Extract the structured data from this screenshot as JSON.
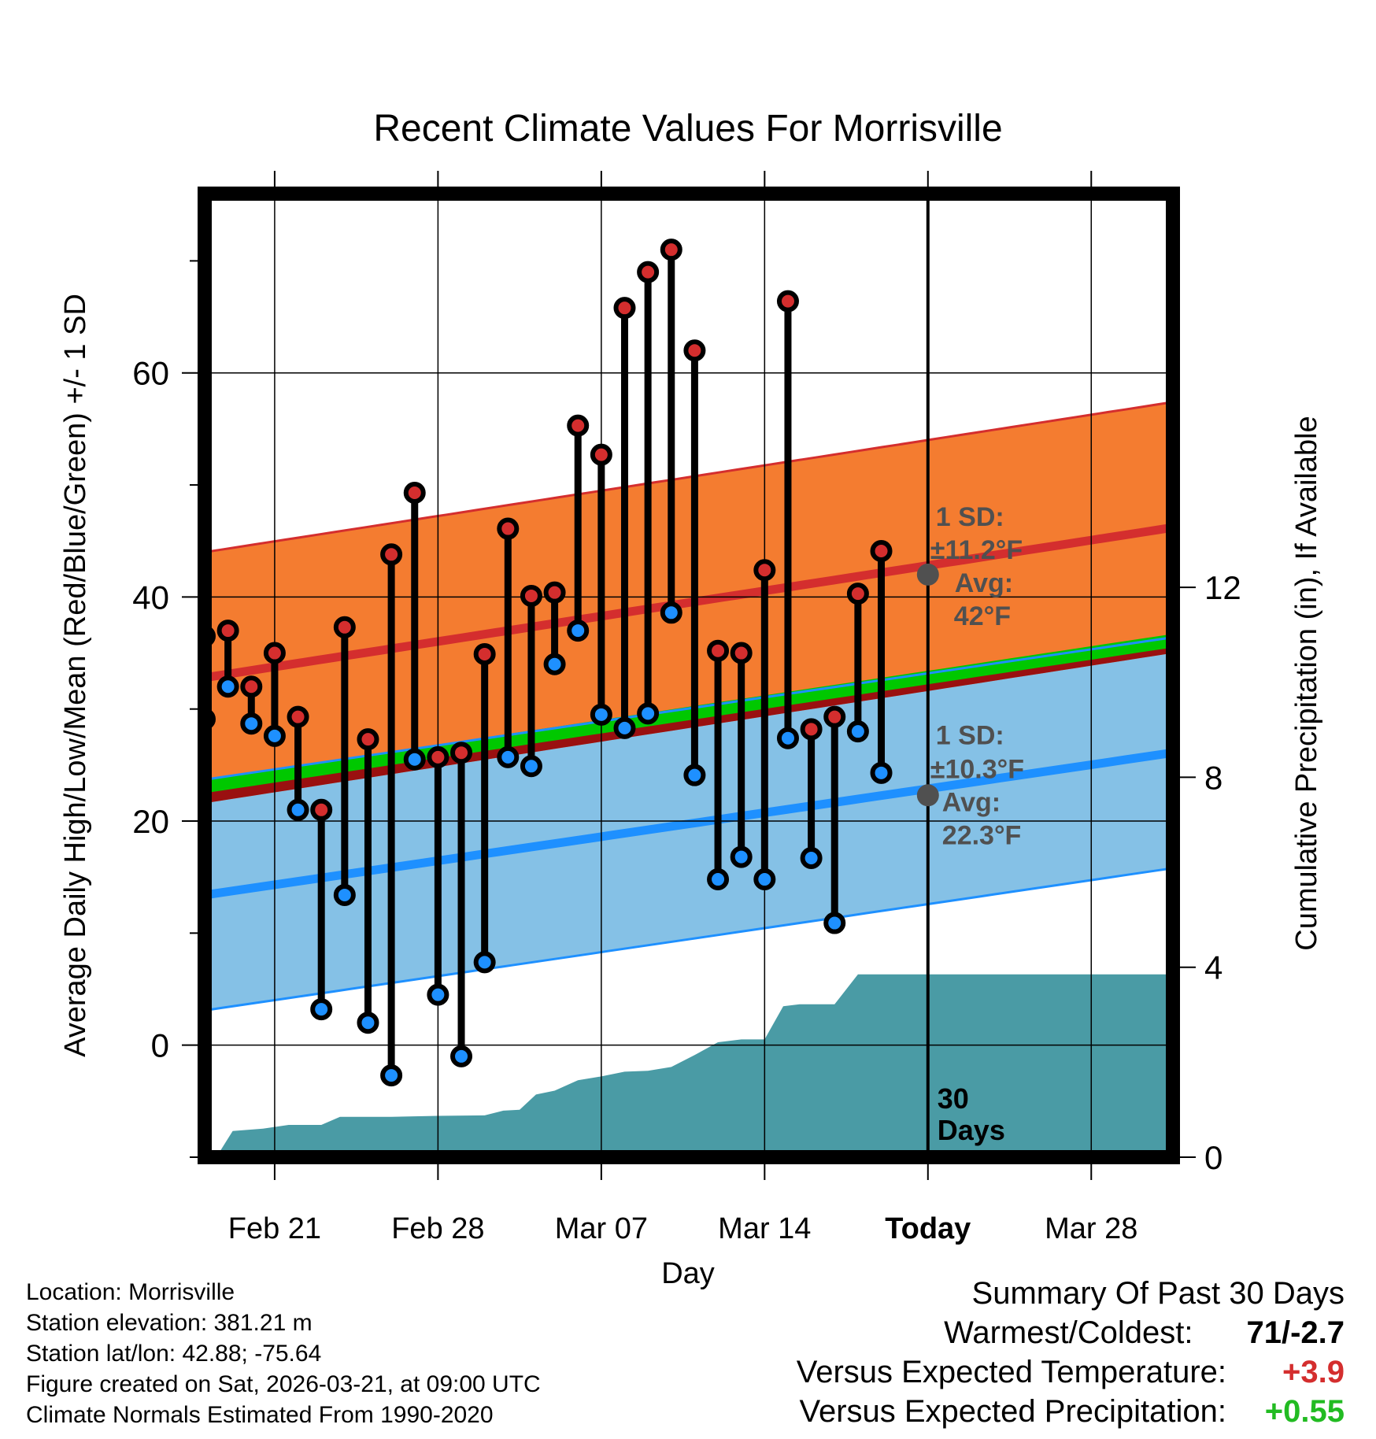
{
  "title": "Recent Climate Values For Morrisville",
  "colors": {
    "high_band": "#F47C30",
    "high_line": "#D42E2E",
    "low_band": "#85C1E6",
    "low_line": "#1E90FF",
    "overlap_red": "#9A1010",
    "overlap_green": "#00C800",
    "precip_fill": "#4A9BA5",
    "high_dot": "#D42E2E",
    "low_dot": "#1E90FF",
    "annot_gray": "#505050",
    "warm_red": "#D42E2E",
    "precip_green": "#22BB22"
  },
  "chart_data": {
    "type": "line",
    "xlabel": "Day",
    "ylabel": "Average Daily High/Low/Mean (Red/Blue/Green) +/- 1 SD",
    "ylabel_right": "Cumulative Precipitation (in), If Available",
    "x_ticks": [
      {
        "day": 3,
        "label": "Feb 21"
      },
      {
        "day": 10,
        "label": "Feb 28"
      },
      {
        "day": 17,
        "label": "Mar 07"
      },
      {
        "day": 24,
        "label": "Mar 14"
      },
      {
        "day": 31,
        "label": "Today"
      },
      {
        "day": 38,
        "label": "Mar 28"
      }
    ],
    "y_ticks": [
      0,
      20,
      40,
      60
    ],
    "y_right_ticks": [
      0,
      4,
      8,
      12
    ],
    "xlim": [
      0,
      41.5
    ],
    "ylim": [
      -10,
      76
    ],
    "y_right_lim": [
      0,
      20.29
    ],
    "today_day": 31,
    "today_label": [
      "30",
      "Days"
    ],
    "normals": {
      "high_mean": [
        32.8,
        46.2
      ],
      "high_sd": 11.2,
      "low_mean": [
        13.4,
        26.1
      ],
      "low_sd": 10.3,
      "mean_avg": [
        23.1,
        36.1
      ]
    },
    "today_annotations": {
      "high": {
        "sd_label": "1 SD:",
        "sd_value": "±11.2°F",
        "avg_label": "Avg:",
        "avg_value": "42°F",
        "value": 42.0
      },
      "low": {
        "sd_label": "1 SD:",
        "sd_value": "±10.3°F",
        "avg_label": "Avg:",
        "avg_value": "22.3°F",
        "value": 22.3
      }
    },
    "daily": [
      {
        "day": 0,
        "high": 36.5,
        "low": 29.1
      },
      {
        "day": 1,
        "high": 37.0,
        "low": 32.0
      },
      {
        "day": 2,
        "high": 32.0,
        "low": 28.7
      },
      {
        "day": 3,
        "high": 35.0,
        "low": 27.6
      },
      {
        "day": 4,
        "high": 29.3,
        "low": 21.0
      },
      {
        "day": 5,
        "high": 21.0,
        "low": 3.2
      },
      {
        "day": 6,
        "high": 37.3,
        "low": 13.4
      },
      {
        "day": 7,
        "high": 27.3,
        "low": 2.0
      },
      {
        "day": 8,
        "high": 43.8,
        "low": -2.7
      },
      {
        "day": 9,
        "high": 49.3,
        "low": 25.5
      },
      {
        "day": 10,
        "high": 25.7,
        "low": 4.5
      },
      {
        "day": 11,
        "high": 26.1,
        "low": -1.0
      },
      {
        "day": 12,
        "high": 34.9,
        "low": 7.4
      },
      {
        "day": 13,
        "high": 46.1,
        "low": 25.7
      },
      {
        "day": 14,
        "high": 40.1,
        "low": 24.9
      },
      {
        "day": 15,
        "high": 40.4,
        "low": 34.0
      },
      {
        "day": 16,
        "high": 55.3,
        "low": 37.0
      },
      {
        "day": 17,
        "high": 52.7,
        "low": 29.5
      },
      {
        "day": 18,
        "high": 65.8,
        "low": 28.3
      },
      {
        "day": 19,
        "high": 69.0,
        "low": 29.6
      },
      {
        "day": 20,
        "high": 71.0,
        "low": 38.6
      },
      {
        "day": 21,
        "high": 62.0,
        "low": 24.1
      },
      {
        "day": 22,
        "high": 35.2,
        "low": 14.8
      },
      {
        "day": 23,
        "high": 35.0,
        "low": 16.8
      },
      {
        "day": 24,
        "high": 42.4,
        "low": 14.8
      },
      {
        "day": 25,
        "high": 66.4,
        "low": 27.4
      },
      {
        "day": 26,
        "high": 28.2,
        "low": 16.7
      },
      {
        "day": 27,
        "high": 29.3,
        "low": 10.9
      },
      {
        "day": 28,
        "high": 40.3,
        "low": 28.0
      },
      {
        "day": 29,
        "high": 44.1,
        "low": 24.3
      }
    ],
    "precip_cumulative": [
      {
        "x": 0.5,
        "in": 0.0
      },
      {
        "x": 1.2,
        "in": 0.55
      },
      {
        "x": 2.5,
        "in": 0.6
      },
      {
        "x": 3.6,
        "in": 0.68
      },
      {
        "x": 5.0,
        "in": 0.68
      },
      {
        "x": 5.8,
        "in": 0.85
      },
      {
        "x": 8.0,
        "in": 0.85
      },
      {
        "x": 10.0,
        "in": 0.87
      },
      {
        "x": 12.0,
        "in": 0.88
      },
      {
        "x": 12.8,
        "in": 0.98
      },
      {
        "x": 13.5,
        "in": 1.0
      },
      {
        "x": 14.2,
        "in": 1.32
      },
      {
        "x": 15.0,
        "in": 1.4
      },
      {
        "x": 16.0,
        "in": 1.62
      },
      {
        "x": 17.0,
        "in": 1.7
      },
      {
        "x": 18.0,
        "in": 1.8
      },
      {
        "x": 19.0,
        "in": 1.82
      },
      {
        "x": 20.0,
        "in": 1.9
      },
      {
        "x": 21.0,
        "in": 2.15
      },
      {
        "x": 22.0,
        "in": 2.42
      },
      {
        "x": 23.0,
        "in": 2.48
      },
      {
        "x": 24.0,
        "in": 2.48
      },
      {
        "x": 24.8,
        "in": 3.18
      },
      {
        "x": 25.5,
        "in": 3.22
      },
      {
        "x": 27.0,
        "in": 3.22
      },
      {
        "x": 28.0,
        "in": 3.85
      },
      {
        "x": 41.5,
        "in": 3.85
      }
    ]
  },
  "location_info": {
    "location": "Location: Morrisville",
    "elevation": "Station elevation: 381.21 m",
    "latlon": "Station lat/lon: 42.88; -75.64",
    "created": "Figure created on Sat, 2026-03-21, at 09:00 UTC",
    "normals": "Climate Normals Estimated From 1990-2020"
  },
  "summary": {
    "title": "Summary Of Past 30 Days",
    "warmest_label": "Warmest/Coldest:",
    "warmest_value": "71/-2.7",
    "temp_label": "Versus Expected Temperature:",
    "temp_value": "+3.9",
    "precip_label": "Versus Expected Precipitation:",
    "precip_value": "+0.55"
  }
}
